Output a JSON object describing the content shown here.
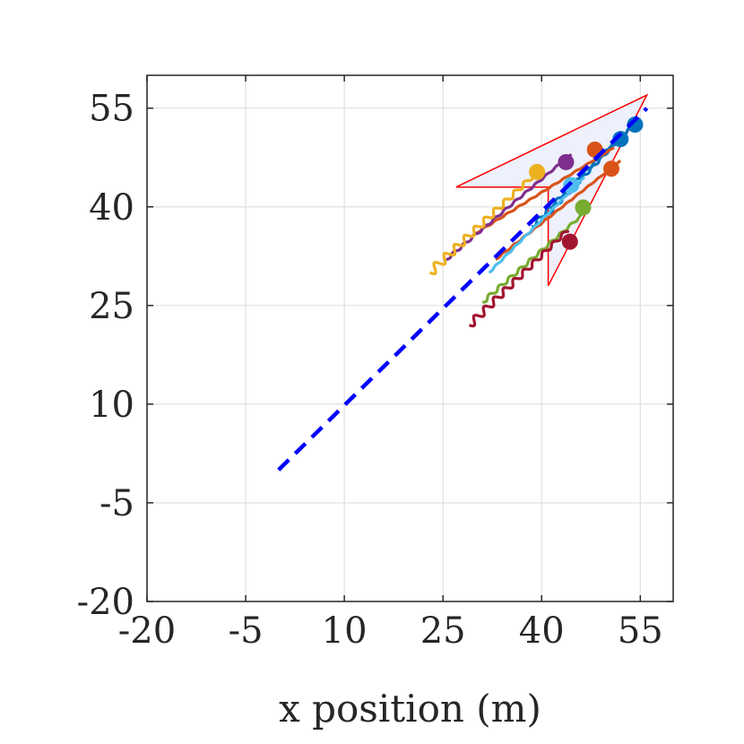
{
  "chart_data": {
    "type": "line",
    "title": "",
    "xlabel": "x position (m)",
    "ylabel": "",
    "xlim": [
      -20,
      60
    ],
    "ylim": [
      -20,
      60
    ],
    "xticks": [
      -20,
      -5,
      10,
      25,
      40,
      55
    ],
    "yticks": [
      -20,
      -5,
      10,
      25,
      40,
      55
    ],
    "xtick_labels": [
      "-20",
      "-5",
      "10",
      "25",
      "40",
      "55"
    ],
    "ytick_labels": [
      "-20",
      "-5",
      "10",
      "25",
      "40",
      "55"
    ],
    "grid": true,
    "reference_path": {
      "style": "dashed",
      "color": "#0000ff",
      "x": [
        0,
        56
      ],
      "y": [
        0,
        55
      ]
    },
    "sensing_region": {
      "edge_color": "#ff0000",
      "fill_color": "#eef0fb",
      "polygon": [
        [
          56,
          57
        ],
        [
          27,
          43
        ],
        [
          41,
          43
        ],
        [
          41,
          28
        ]
      ]
    },
    "series": [
      {
        "color": "#0072bd",
        "x": [
          41,
          54.2
        ],
        "y": [
          39,
          52.8
        ],
        "marker": [
          54.2,
          52.5
        ],
        "wiggle": 0.3
      },
      {
        "color": "#0072bd",
        "x": [
          38.5,
          52.5
        ],
        "y": [
          37,
          51.3
        ],
        "marker": [
          52,
          50.3
        ],
        "wiggle": 0.3
      },
      {
        "color": "#d95319",
        "x": [
          30,
          51
        ],
        "y": [
          36,
          49
        ],
        "marker": [
          48.1,
          48.7
        ],
        "wiggle": 0.1
      },
      {
        "color": "#d95319",
        "x": [
          33,
          52
        ],
        "y": [
          32,
          47
        ],
        "marker": [
          50.6,
          45.8
        ],
        "wiggle": 0.1
      },
      {
        "color": "#7e2f8e",
        "x": [
          25.5,
          44.5
        ],
        "y": [
          32,
          48
        ],
        "marker": [
          43.7,
          46.8
        ],
        "wiggle": 0.2
      },
      {
        "color": "#edb120",
        "x": [
          23,
          39
        ],
        "y": [
          30,
          45
        ],
        "marker": [
          39.3,
          45.3
        ],
        "wiggle": 0.7
      },
      {
        "color": "#4dbeee",
        "x": [
          32,
          46.5
        ],
        "y": [
          30,
          44.5
        ],
        "marker": [
          44.5,
          43.3
        ],
        "wiggle": 0.1
      },
      {
        "color": "#77ac30",
        "x": [
          31,
          47
        ],
        "y": [
          25.5,
          39.5
        ],
        "marker": [
          46.3,
          39.9
        ],
        "wiggle": 0.3
      },
      {
        "color": "#a2142f",
        "x": [
          29,
          44
        ],
        "y": [
          22,
          36.5
        ],
        "marker": [
          44.3,
          34.7
        ],
        "wiggle": 0.6
      }
    ]
  }
}
